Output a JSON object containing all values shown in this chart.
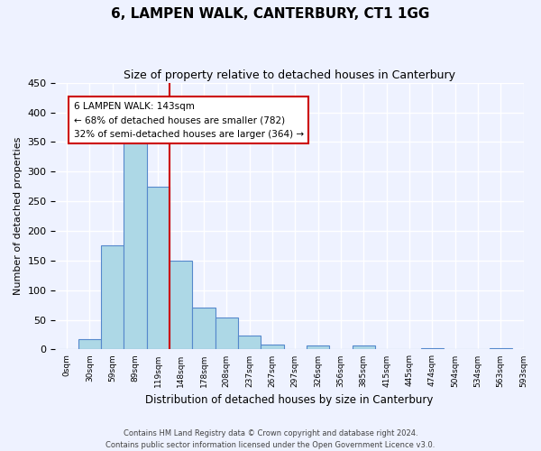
{
  "title": "6, LAMPEN WALK, CANTERBURY, CT1 1GG",
  "subtitle": "Size of property relative to detached houses in Canterbury",
  "xlabel": "Distribution of detached houses by size in Canterbury",
  "ylabel": "Number of detached properties",
  "bar_values": [
    0,
    18,
    176,
    363,
    274,
    150,
    70,
    54,
    23,
    9,
    0,
    6,
    0,
    6,
    0,
    0,
    2,
    0,
    0,
    2
  ],
  "bar_labels": [
    "0sqm",
    "30sqm",
    "59sqm",
    "89sqm",
    "119sqm",
    "148sqm",
    "178sqm",
    "208sqm",
    "237sqm",
    "267sqm",
    "297sqm",
    "326sqm",
    "356sqm",
    "385sqm",
    "415sqm",
    "445sqm",
    "474sqm",
    "504sqm",
    "534sqm",
    "563sqm"
  ],
  "last_label": "593sqm",
  "bar_color": "#add8e6",
  "bar_edge_color": "#5588cc",
  "property_line_color": "#cc0000",
  "property_line_x": 4.5,
  "annotation_text_line1": "6 LAMPEN WALK: 143sqm",
  "annotation_text_line2": "← 68% of detached houses are smaller (782)",
  "annotation_text_line3": "32% of semi-detached houses are larger (364) →",
  "ylim": [
    0,
    450
  ],
  "yticks": [
    0,
    50,
    100,
    150,
    200,
    250,
    300,
    350,
    400,
    450
  ],
  "footer_line1": "Contains HM Land Registry data © Crown copyright and database right 2024.",
  "footer_line2": "Contains public sector information licensed under the Open Government Licence v3.0.",
  "background_color": "#eef2ff",
  "grid_color": "#ffffff"
}
